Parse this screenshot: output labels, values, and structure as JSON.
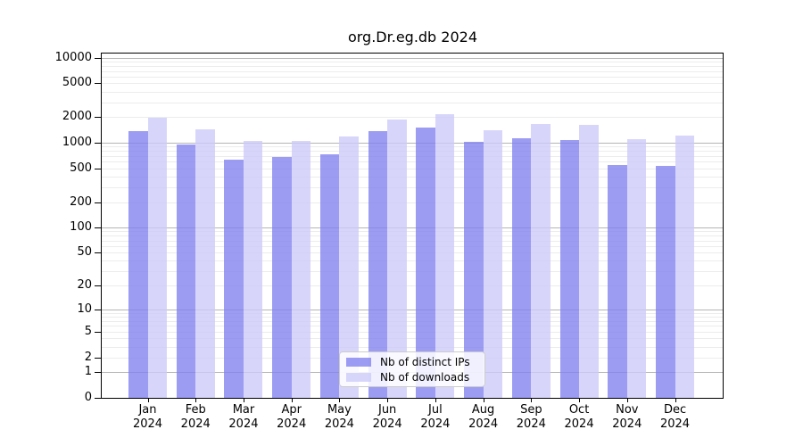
{
  "chart_data": {
    "type": "bar",
    "title": "org.Dr.eg.db 2024",
    "categories": [
      "Jan",
      "Feb",
      "Mar",
      "Apr",
      "May",
      "Jun",
      "Jul",
      "Aug",
      "Sep",
      "Oct",
      "Nov",
      "Dec"
    ],
    "x_year_label": "2024",
    "series": [
      {
        "name": "Nb of distinct IPs",
        "color": "#8080ef",
        "values": [
          1360,
          960,
          630,
          680,
          740,
          1360,
          1520,
          1020,
          1130,
          1070,
          550,
          535
        ]
      },
      {
        "name": "Nb of downloads",
        "color": "#cccaf8",
        "values": [
          1990,
          1440,
          1040,
          1040,
          1200,
          1880,
          2150,
          1400,
          1650,
          1630,
          1100,
          1220
        ]
      }
    ],
    "y_axis": {
      "scale": "log10(1+x)",
      "tick_labels": [
        "0",
        "1",
        "2",
        "5",
        "10",
        "20",
        "50",
        "100",
        "200",
        "500",
        "1000",
        "2000",
        "5000",
        "10000"
      ],
      "range": [
        0,
        10000
      ],
      "grid": "major-decades-dark, minor-2-to-9-light"
    },
    "legend": {
      "position": "bottom-center",
      "entries": [
        "Nb of distinct IPs",
        "Nb of downloads"
      ]
    }
  },
  "colors": {
    "bar_distinct_ips": "#8080ef",
    "bar_downloads": "#cccaf8",
    "grid_major": "#b5b5b5",
    "grid_minor": "#ececec",
    "axis": "#000000",
    "background": "#ffffff",
    "legend_border": "#cccccc"
  }
}
